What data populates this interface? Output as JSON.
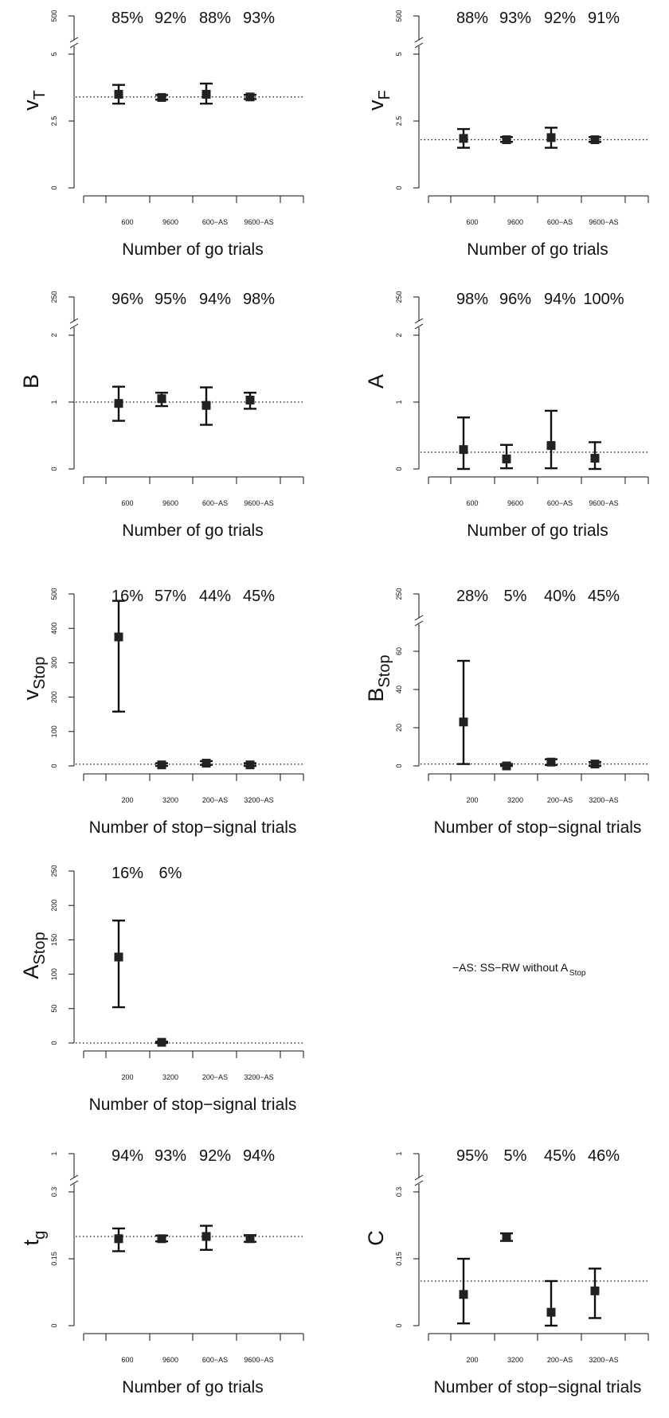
{
  "figure_note": {
    "text": "−AS: SS−RW without A",
    "sub": "Stop"
  },
  "chart_data": [
    {
      "type": "errorbar",
      "ylabel": "v",
      "ylabel_sub": "T",
      "xlabel": "Number of go trials",
      "categories": [
        "600",
        "9600",
        "600−AS",
        "9600−AS"
      ],
      "coverage_labels": [
        "85%",
        "92%",
        "88%",
        "93%"
      ],
      "yticks": [
        "0",
        "2.5",
        "5",
        "500"
      ],
      "axis_break": true,
      "ylim": [
        0,
        5
      ],
      "true_value": 3.4,
      "points": [
        {
          "mean": 3.5,
          "low": 3.15,
          "high": 3.85
        },
        {
          "mean": 3.38,
          "low": 3.3,
          "high": 3.47
        },
        {
          "mean": 3.5,
          "low": 3.15,
          "high": 3.9
        },
        {
          "mean": 3.4,
          "low": 3.32,
          "high": 3.48
        }
      ]
    },
    {
      "type": "errorbar",
      "ylabel": "v",
      "ylabel_sub": "F",
      "xlabel": "Number of go trials",
      "categories": [
        "600",
        "9600",
        "600−AS",
        "9600−AS"
      ],
      "coverage_labels": [
        "88%",
        "93%",
        "92%",
        "91%"
      ],
      "yticks": [
        "0",
        "2.5",
        "5",
        "500"
      ],
      "axis_break": true,
      "ylim": [
        0,
        5
      ],
      "true_value": 1.8,
      "points": [
        {
          "mean": 1.85,
          "low": 1.5,
          "high": 2.2
        },
        {
          "mean": 1.8,
          "low": 1.72,
          "high": 1.9
        },
        {
          "mean": 1.88,
          "low": 1.5,
          "high": 2.25
        },
        {
          "mean": 1.8,
          "low": 1.72,
          "high": 1.9
        }
      ]
    },
    {
      "type": "errorbar",
      "ylabel": "B",
      "ylabel_sub": "",
      "xlabel": "Number of go trials",
      "categories": [
        "600",
        "9600",
        "600−AS",
        "9600−AS"
      ],
      "coverage_labels": [
        "96%",
        "95%",
        "94%",
        "98%"
      ],
      "yticks": [
        "0",
        "1",
        "2",
        "250"
      ],
      "axis_break": true,
      "ylim": [
        0,
        2
      ],
      "true_value": 1.0,
      "points": [
        {
          "mean": 0.98,
          "low": 0.72,
          "high": 1.23
        },
        {
          "mean": 1.05,
          "low": 0.94,
          "high": 1.14
        },
        {
          "mean": 0.95,
          "low": 0.66,
          "high": 1.22
        },
        {
          "mean": 1.03,
          "low": 0.9,
          "high": 1.14
        }
      ]
    },
    {
      "type": "errorbar",
      "ylabel": "A",
      "ylabel_sub": "",
      "xlabel": "Number of go trials",
      "categories": [
        "600",
        "9600",
        "600−AS",
        "9600−AS"
      ],
      "coverage_labels": [
        "98%",
        "96%",
        "94%",
        "100%"
      ],
      "yticks": [
        "0",
        "1",
        "2",
        "250"
      ],
      "axis_break": true,
      "ylim": [
        0,
        2
      ],
      "true_value": 0.25,
      "points": [
        {
          "mean": 0.29,
          "low": 0.0,
          "high": 0.77
        },
        {
          "mean": 0.15,
          "low": 0.01,
          "high": 0.36
        },
        {
          "mean": 0.35,
          "low": 0.01,
          "high": 0.87
        },
        {
          "mean": 0.16,
          "low": 0.0,
          "high": 0.4
        }
      ]
    },
    {
      "type": "errorbar",
      "ylabel": "v",
      "ylabel_sub": "Stop",
      "xlabel": "Number of stop−signal trials",
      "categories": [
        "200",
        "3200",
        "200−AS",
        "3200−AS"
      ],
      "coverage_labels": [
        "16%",
        "57%",
        "44%",
        "45%"
      ],
      "yticks": [
        "0",
        "100",
        "200",
        "300",
        "400",
        "500"
      ],
      "axis_break": false,
      "ylim": [
        0,
        500
      ],
      "true_value": 5,
      "points": [
        {
          "mean": 375,
          "low": 158,
          "high": 480
        },
        {
          "mean": 3,
          "low": 0,
          "high": 8
        },
        {
          "mean": 8,
          "low": 3,
          "high": 14
        },
        {
          "mean": 3,
          "low": 0,
          "high": 8
        }
      ]
    },
    {
      "type": "errorbar",
      "ylabel": "B",
      "ylabel_sub": "Stop",
      "xlabel": "Number of stop−signal trials",
      "categories": [
        "200",
        "3200",
        "200−AS",
        "3200−AS"
      ],
      "coverage_labels": [
        "28%",
        "5%",
        "40%",
        "45%"
      ],
      "yticks": [
        "0",
        "20",
        "40",
        "60",
        "250"
      ],
      "axis_break": true,
      "ylim": [
        0,
        70
      ],
      "true_value": 1,
      "points": [
        {
          "mean": 23,
          "low": 1,
          "high": 55
        },
        {
          "mean": 0,
          "low": 0,
          "high": 1
        },
        {
          "mean": 2,
          "low": 0.5,
          "high": 3.5
        },
        {
          "mean": 1,
          "low": 0,
          "high": 2
        }
      ]
    },
    {
      "type": "errorbar",
      "ylabel": "A",
      "ylabel_sub": "Stop",
      "xlabel": "Number of stop−signal trials",
      "categories": [
        "200",
        "3200",
        "200−AS",
        "3200−AS"
      ],
      "coverage_labels": [
        "16%",
        "6%"
      ],
      "yticks": [
        "0",
        "50",
        "100",
        "150",
        "200",
        "250"
      ],
      "axis_break": false,
      "ylim": [
        0,
        250
      ],
      "true_value": 0,
      "points": [
        {
          "mean": 125,
          "low": 52,
          "high": 178
        },
        {
          "mean": 1,
          "low": 0,
          "high": 2
        }
      ]
    },
    {
      "type": "errorbar",
      "ylabel": "t",
      "ylabel_sub": "g",
      "xlabel": "Number of go trials",
      "categories": [
        "600",
        "9600",
        "600−AS",
        "9600−AS"
      ],
      "coverage_labels": [
        "94%",
        "93%",
        "92%",
        "94%"
      ],
      "yticks": [
        "0",
        "0.15",
        "0.3",
        "1"
      ],
      "axis_break": true,
      "ylim": [
        0,
        0.3
      ],
      "true_value": 0.2,
      "points": [
        {
          "mean": 0.195,
          "low": 0.167,
          "high": 0.218
        },
        {
          "mean": 0.195,
          "low": 0.189,
          "high": 0.202
        },
        {
          "mean": 0.2,
          "low": 0.17,
          "high": 0.224
        },
        {
          "mean": 0.195,
          "low": 0.188,
          "high": 0.203
        }
      ]
    },
    {
      "type": "errorbar",
      "ylabel": "C",
      "ylabel_sub": "",
      "xlabel": "Number of stop−signal trials",
      "categories": [
        "200",
        "3200",
        "200−AS",
        "3200−AS"
      ],
      "coverage_labels": [
        "95%",
        "5%",
        "45%",
        "46%"
      ],
      "yticks": [
        "0",
        "0.15",
        "0.3",
        "1"
      ],
      "axis_break": true,
      "ylim": [
        0,
        0.3
      ],
      "true_value": 0.1,
      "points": [
        {
          "mean": 0.07,
          "low": 0.005,
          "high": 0.15
        },
        {
          "mean": 0.198,
          "low": 0.19,
          "high": 0.207
        },
        {
          "mean": 0.03,
          "low": 0.0,
          "high": 0.1
        },
        {
          "mean": 0.078,
          "low": 0.017,
          "high": 0.128
        }
      ]
    }
  ]
}
